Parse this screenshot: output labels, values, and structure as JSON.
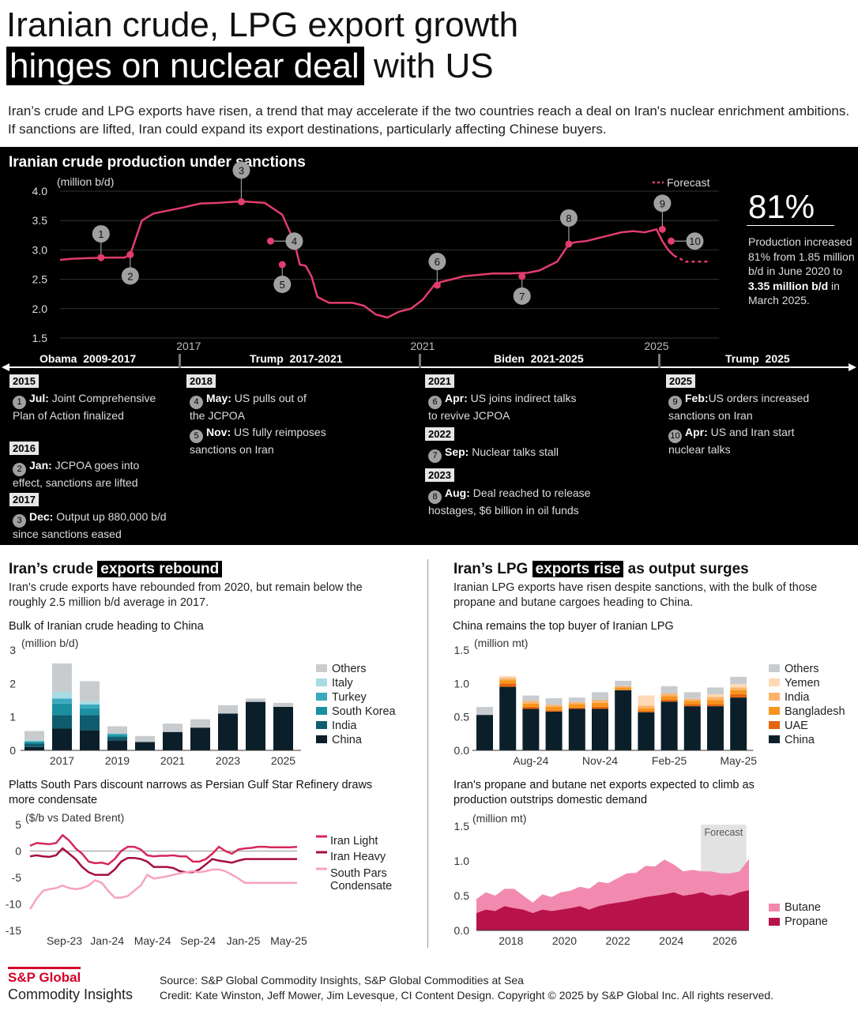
{
  "header": {
    "title_line1": "Iranian crude, LPG export growth",
    "title_hl": "hinges on nuclear deal",
    "title_rest": "with US",
    "subtitle": "Iran’s crude and LPG exports have risen, a trend that may accelerate if the two countries reach a deal on Iran's nuclear enrichment ambitions. If sanctions are lifted, Iran could expand its export destinations, particularly affecting Chinese buyers."
  },
  "production": {
    "title": "Iranian crude production under sanctions",
    "unit": "(million b/d)",
    "forecast_label": "Forecast",
    "big_stat": "81%",
    "stat_text_1": "Production increased 81% from 1.85 million b/d in June 2020 to ",
    "stat_text_bold": "3.35 million b/d",
    "stat_text_2": " in March 2025.",
    "eras": [
      {
        "label": "Obama  2009-2017"
      },
      {
        "label": "Trump  2017-2021"
      },
      {
        "label": "Biden  2021-2025"
      },
      {
        "label": "Trump  2025"
      }
    ]
  },
  "timeline": {
    "years": [
      "2015",
      "2016",
      "2017",
      "2018",
      "2021",
      "2022",
      "2023",
      "2025"
    ],
    "events": [
      {
        "n": "1",
        "head": "Jul:",
        "text": " Joint Comprehensive Plan of Action finalized"
      },
      {
        "n": "2",
        "head": "Jan:",
        "text": " JCPOA goes into effect, sanctions are lifted"
      },
      {
        "n": "3",
        "head": "Dec:",
        "text": " Output up 880,000 b/d since sanctions eased"
      },
      {
        "n": "4",
        "head": "May:",
        "text": " US pulls out of the JCPOA"
      },
      {
        "n": "5",
        "head": "Nov:",
        "text": " US fully reimposes sanctions on Iran"
      },
      {
        "n": "6",
        "head": "Apr:",
        "text": " US joins indirect talks to revive JCPOA"
      },
      {
        "n": "7",
        "head": "Sep:",
        "text": " Nuclear talks stall"
      },
      {
        "n": "8",
        "head": "Aug:",
        "text": " Deal reached to release hostages, $6 billion in oil funds"
      },
      {
        "n": "9",
        "head": "Feb:",
        "text": "US orders increased sanctions on Iran"
      },
      {
        "n": "10",
        "head": "Apr:",
        "text": " US and Iran start nuclear talks"
      }
    ]
  },
  "crude_section": {
    "title_pre": "Iran’s crude ",
    "title_hl": "exports rebound",
    "desc": "Iran's crude exports have rebounded from 2020, but remain below the roughly 2.5 million b/d average in 2017."
  },
  "lpg_section": {
    "title_pre": "Iran’s LPG ",
    "title_hl": "exports rise",
    "title_post": " as output surges",
    "desc": "Iranian LPG exports have risen despite sanctions, with the bulk of those propane and butane cargoes heading to China."
  },
  "footer": {
    "brand1": "S&P Global",
    "brand2": "Commodity Insights",
    "source": "Source: S&P Global Commodity Insights, S&P Global Commodities at Sea",
    "credit": "Credit: Kate Winston, Jeff Mower, Jim Levesque, CI Content Design.  Copyright © 2025 by S&P Global Inc.  All rights reserved."
  },
  "colors": {
    "pink_line": "#e23d6d",
    "dark_navy": "#0b1f2a",
    "india_teal": "#0f5c6e",
    "skorea_teal": "#1a8fa0",
    "turkey_teal": "#3aa9bd",
    "italy_lt": "#a8dce4",
    "others_gray": "#c9ccce",
    "uae": "#e4650f",
    "bangladesh": "#f7941d",
    "india_lpg": "#fbb36b",
    "yemen": "#fdd9b5",
    "butane": "#f28ab0",
    "propane": "#b8134a",
    "iran_light": "#d6275a",
    "iran_heavy": "#a50d3e",
    "south_pars": "#f7a3be"
  },
  "chart_data": [
    {
      "id": "production",
      "type": "line",
      "title": "Iranian crude production under sanctions",
      "ylabel": "(million b/d)",
      "ylim": [
        1.5,
        4.0
      ],
      "yticks": [
        "4.0",
        "3.5",
        "3.0",
        "2.5",
        "2.0",
        "1.5"
      ],
      "xticks": [
        "2017",
        "2021",
        "2025"
      ],
      "x": [
        2014.8,
        2015.0,
        2015.3,
        2015.6,
        2015.9,
        2016.0,
        2016.2,
        2016.4,
        2016.6,
        2016.9,
        2017.2,
        2017.5,
        2017.8,
        2018.0,
        2018.3,
        2018.6,
        2018.8,
        2018.9,
        2019.0,
        2019.1,
        2019.2,
        2019.4,
        2019.6,
        2019.8,
        2020.0,
        2020.2,
        2020.4,
        2020.5,
        2020.6,
        2020.8,
        2021.0,
        2021.2,
        2021.3,
        2021.5,
        2021.7,
        2021.9,
        2022.2,
        2022.5,
        2022.8,
        2023.0,
        2023.3,
        2023.5,
        2023.6,
        2023.8,
        2024.0,
        2024.2,
        2024.4,
        2024.6,
        2024.8,
        2025.0,
        2025.1,
        2025.2,
        2025.3
      ],
      "y": [
        2.83,
        2.85,
        2.86,
        2.87,
        2.87,
        2.92,
        3.5,
        3.62,
        3.66,
        3.72,
        3.79,
        3.8,
        3.82,
        3.82,
        3.8,
        3.6,
        3.15,
        2.75,
        2.73,
        2.55,
        2.2,
        2.1,
        2.1,
        2.1,
        2.05,
        1.9,
        1.85,
        1.9,
        1.95,
        2.0,
        2.15,
        2.4,
        2.45,
        2.5,
        2.55,
        2.57,
        2.6,
        2.6,
        2.61,
        2.65,
        2.8,
        3.1,
        3.13,
        3.15,
        3.2,
        3.25,
        3.3,
        3.32,
        3.3,
        3.35,
        3.15,
        3.0,
        2.9
      ],
      "forecast": {
        "x": [
          2025.3,
          2025.5,
          2025.9
        ],
        "y": [
          2.9,
          2.8,
          2.8
        ]
      },
      "markers": [
        {
          "n": "1",
          "x": 2015.5,
          "y": 2.87
        },
        {
          "n": "2",
          "x": 2016.0,
          "y": 2.92
        },
        {
          "n": "3",
          "x": 2017.9,
          "y": 3.82
        },
        {
          "n": "4",
          "x": 2018.4,
          "y": 3.15
        },
        {
          "n": "5",
          "x": 2018.6,
          "y": 2.75
        },
        {
          "n": "6",
          "x": 2021.25,
          "y": 2.4
        },
        {
          "n": "7",
          "x": 2022.7,
          "y": 2.55
        },
        {
          "n": "8",
          "x": 2023.5,
          "y": 3.1
        },
        {
          "n": "9",
          "x": 2025.1,
          "y": 3.35
        },
        {
          "n": "10",
          "x": 2025.25,
          "y": 3.15
        }
      ]
    },
    {
      "id": "crude_exports",
      "type": "bar",
      "stacked": true,
      "title": "Bulk of Iranian crude heading to China",
      "ylabel": "(million b/d)",
      "ylim": [
        0,
        3
      ],
      "yticks": [
        "3",
        "2",
        "1",
        "0"
      ],
      "xticks": [
        "2017",
        "2019",
        "2021",
        "2023",
        "2025"
      ],
      "categories": [
        "2016",
        "2017",
        "2018",
        "2019",
        "2020",
        "2021",
        "2022",
        "2023",
        "2024",
        "2025"
      ],
      "series": [
        {
          "name": "China",
          "values": [
            0.1,
            0.65,
            0.6,
            0.3,
            0.25,
            0.55,
            0.68,
            1.1,
            1.45,
            1.3
          ]
        },
        {
          "name": "India",
          "values": [
            0.1,
            0.4,
            0.45,
            0.1,
            0,
            0,
            0,
            0,
            0,
            0
          ]
        },
        {
          "name": "South Korea",
          "values": [
            0.05,
            0.35,
            0.2,
            0.05,
            0,
            0,
            0,
            0,
            0,
            0
          ]
        },
        {
          "name": "Turkey",
          "values": [
            0.03,
            0.15,
            0.12,
            0.05,
            0,
            0,
            0,
            0,
            0,
            0
          ]
        },
        {
          "name": "Italy",
          "values": [
            0.02,
            0.2,
            0.1,
            0,
            0,
            0,
            0,
            0,
            0,
            0
          ]
        },
        {
          "name": "Others",
          "values": [
            0.28,
            0.85,
            0.6,
            0.22,
            0.18,
            0.25,
            0.25,
            0.25,
            0.1,
            0.12
          ]
        }
      ]
    },
    {
      "id": "lpg_exports",
      "type": "bar",
      "stacked": true,
      "title": "China remains the top buyer of Iranian LPG",
      "ylabel": "(million mt)",
      "ylim": [
        0,
        1.5
      ],
      "yticks": [
        "1.5",
        "1.0",
        "0.5",
        "0.0"
      ],
      "xticks": [
        "Aug-24",
        "Nov-24",
        "Feb-25",
        "May-25"
      ],
      "categories": [
        "Jun-24",
        "Jul-24",
        "Aug-24",
        "Sep-24",
        "Oct-24",
        "Nov-24",
        "Dec-24",
        "Jan-25",
        "Feb-25",
        "Mar-25",
        "Apr-25",
        "May-25"
      ],
      "series": [
        {
          "name": "China",
          "values": [
            0.53,
            0.95,
            0.62,
            0.58,
            0.62,
            0.62,
            0.9,
            0.57,
            0.73,
            0.66,
            0.66,
            0.79
          ]
        },
        {
          "name": "UAE",
          "values": [
            0,
            0.05,
            0.03,
            0.02,
            0.02,
            0.03,
            0,
            0.02,
            0.03,
            0.03,
            0.03,
            0.05
          ]
        },
        {
          "name": "Bangladesh",
          "values": [
            0,
            0.05,
            0.05,
            0.05,
            0.05,
            0.06,
            0.04,
            0.04,
            0.05,
            0.05,
            0.06,
            0.06
          ]
        },
        {
          "name": "India",
          "values": [
            0,
            0.03,
            0.04,
            0.03,
            0.03,
            0.04,
            0.02,
            0.04,
            0.04,
            0.03,
            0.05,
            0.04
          ]
        },
        {
          "name": "Yemen",
          "values": [
            0,
            0.03,
            0,
            0,
            0,
            0,
            0,
            0.15,
            0,
            0,
            0.04,
            0.05
          ]
        },
        {
          "name": "Others",
          "values": [
            0.12,
            0,
            0.08,
            0.1,
            0.07,
            0.12,
            0.08,
            0,
            0.11,
            0.1,
            0.1,
            0.11
          ]
        }
      ]
    },
    {
      "id": "south_pars",
      "type": "line",
      "title": "Platts South Pars discount narrows as Persian Gulf Star Refinery draws more condensate",
      "ylabel": "($/b vs Dated Brent)",
      "ylim": [
        -15,
        5
      ],
      "yticks": [
        "5",
        "0",
        "-5",
        "-10",
        "-15"
      ],
      "xticks": [
        "Sep-23",
        "Jan-24",
        "May-24",
        "Sep-24",
        "Jan-25",
        "May-25"
      ],
      "x": [
        0,
        1,
        2,
        3,
        4,
        5,
        6,
        7,
        8,
        9,
        10,
        11,
        12,
        13,
        14,
        15,
        16,
        17,
        18,
        19,
        20,
        21,
        22,
        23,
        24,
        25,
        26,
        27,
        28,
        29,
        30,
        31,
        32,
        33,
        34,
        35,
        36,
        37,
        38,
        39,
        40,
        41
      ],
      "series": [
        {
          "name": "Iran Light",
          "values": [
            1,
            1.5,
            1.4,
            1.3,
            1.5,
            3,
            2,
            0.5,
            -0.5,
            -2,
            -2.3,
            -2.2,
            -2.5,
            -1.5,
            0,
            0.8,
            0.8,
            0.3,
            -0.8,
            -1,
            -0.9,
            -0.9,
            -0.8,
            -1,
            -1,
            -2,
            -2,
            -1.5,
            -0.5,
            0.8,
            0,
            -0.5,
            0.3,
            0.5,
            0.6,
            0.8,
            0.8,
            0.7,
            0.7,
            0.7,
            0.7,
            0.8
          ]
        },
        {
          "name": "Iran Heavy",
          "values": [
            -1,
            -0.8,
            -1,
            -1.1,
            -0.8,
            0.5,
            -0.5,
            -1.5,
            -3,
            -4,
            -4.5,
            -4.5,
            -4.5,
            -3.5,
            -2,
            -1.3,
            -1.3,
            -1.5,
            -2,
            -3,
            -3,
            -3,
            -3.2,
            -3.8,
            -4,
            -4,
            -3.5,
            -2.5,
            -1.5,
            -1.8,
            -2,
            -2.2,
            -1.8,
            -1.5,
            -1.5,
            -1.5,
            -1.5,
            -1.5,
            -1.5,
            -1.5,
            -1.5,
            -1.5
          ]
        },
        {
          "name": "South Pars Condensate",
          "values": [
            -11,
            -9,
            -7.5,
            -7.2,
            -7,
            -6.5,
            -7,
            -7.2,
            -7,
            -6.5,
            -5.5,
            -6,
            -7.5,
            -8.8,
            -8.8,
            -8.5,
            -7.5,
            -6.5,
            -4.5,
            -5.2,
            -5,
            -4.8,
            -4.5,
            -4.2,
            -4,
            -3.8,
            -4,
            -3.8,
            -3.5,
            -3.5,
            -3.8,
            -4.5,
            -5.2,
            -6,
            -6,
            -6,
            -6,
            -6,
            -6,
            -6,
            -6,
            -6
          ]
        }
      ]
    },
    {
      "id": "propane_butane",
      "type": "area",
      "stacked": true,
      "title": "Iran's propane and butane net exports expected to climb as production outstrips domestic demand",
      "ylabel": "(million mt)",
      "ylim": [
        0,
        1.5
      ],
      "yticks": [
        "1.5",
        "1.0",
        "0.5",
        "0.0"
      ],
      "xticks": [
        "2018",
        "2020",
        "2022",
        "2024",
        "2026"
      ],
      "forecast_region": {
        "label": "Forecast",
        "from": 2025.4,
        "to": 2027.1
      },
      "series": [
        {
          "name": "Propane",
          "values": [
            0.25,
            0.3,
            0.28,
            0.35,
            0.32,
            0.3,
            0.25,
            0.3,
            0.28,
            0.3,
            0.32,
            0.35,
            0.3,
            0.35,
            0.38,
            0.4,
            0.42,
            0.45,
            0.48,
            0.5,
            0.52,
            0.55,
            0.5,
            0.52,
            0.55,
            0.5,
            0.52,
            0.5,
            0.55,
            0.58
          ]
        },
        {
          "name": "Butane",
          "values": [
            0.2,
            0.25,
            0.22,
            0.25,
            0.28,
            0.2,
            0.15,
            0.22,
            0.2,
            0.25,
            0.25,
            0.28,
            0.3,
            0.35,
            0.3,
            0.35,
            0.4,
            0.38,
            0.45,
            0.42,
            0.5,
            0.4,
            0.35,
            0.35,
            0.3,
            0.35,
            0.3,
            0.32,
            0.3,
            0.45
          ]
        }
      ]
    }
  ]
}
